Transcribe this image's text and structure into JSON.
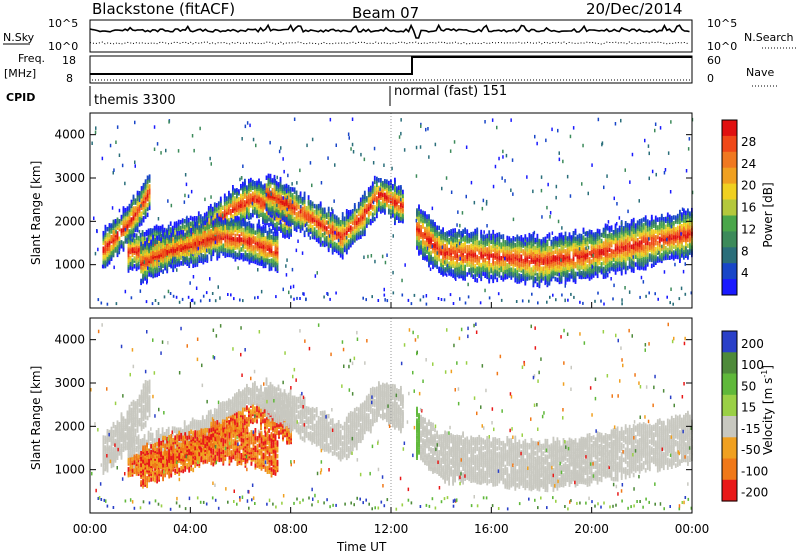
{
  "header": {
    "title": "Blackstone (fitACF)",
    "beam": "Beam 07",
    "date": "20/Dec/2014"
  },
  "panels": {
    "nsky": {
      "label": "N.Sky",
      "left_ticks": [
        "10^5",
        "10^0"
      ],
      "right_ticks": [
        "10^5",
        "10^0"
      ],
      "right_label": "N.Search"
    },
    "freq": {
      "label_top": "Freq.",
      "label_bottom": "[MHz]",
      "left_ticks": [
        "18",
        "8"
      ],
      "right_ticks": [
        "60",
        "0"
      ],
      "right_label": "Nave"
    },
    "cpid": {
      "label": "CPID",
      "segments": [
        {
          "name": "themis 3300",
          "start": "00:00"
        },
        {
          "name": "normal (fast) 151",
          "start": "12:00"
        }
      ]
    }
  },
  "chart_data": [
    {
      "type": "heatmap",
      "title": "Power",
      "ylabel": "Slant Range [km]",
      "xlabel": "Time UT",
      "x_ticks": [
        "00:00",
        "04:00",
        "08:00",
        "12:00",
        "16:00",
        "20:00",
        "00:00"
      ],
      "y_ticks": [
        1000,
        2000,
        3000,
        4000
      ],
      "ylim": [
        0,
        4500
      ],
      "colorbar": {
        "label": "Power [dB]",
        "ticks": [
          4,
          8,
          12,
          16,
          20,
          24,
          28
        ],
        "colors": [
          "#1a1aff",
          "#1846c8",
          "#2a6e7a",
          "#3c8a5a",
          "#4aa64a",
          "#b4c83c",
          "#f0d020",
          "#f0a020",
          "#f07820",
          "#f04818",
          "#e01010"
        ]
      },
      "bands": [
        {
          "time": [
            0.5,
            1,
            1.5,
            2,
            2.4
          ],
          "range": [
            1400,
            1700,
            2000,
            2400,
            2800
          ]
        },
        {
          "time": [
            1.5,
            3,
            4.5,
            5.5,
            6.5,
            8
          ],
          "range": [
            1350,
            1500,
            1800,
            2300,
            2600,
            2100
          ]
        },
        {
          "time": [
            7,
            8,
            9,
            10,
            10.8,
            11.5,
            12.5
          ],
          "range": [
            2700,
            2400,
            2050,
            1700,
            2150,
            2700,
            2400
          ]
        },
        {
          "time": [
            13,
            14,
            16,
            18,
            20,
            22,
            24
          ],
          "range": [
            1900,
            1350,
            1250,
            1150,
            1300,
            1550,
            1800
          ]
        },
        {
          "time": [
            2,
            3,
            4,
            5,
            6,
            7.5
          ],
          "range": [
            1100,
            1350,
            1500,
            1700,
            1650,
            1350
          ]
        }
      ]
    },
    {
      "type": "heatmap",
      "title": "Velocity",
      "ylabel": "Slant Range [km]",
      "xlabel": "Time UT",
      "x_ticks": [
        "00:00",
        "04:00",
        "08:00",
        "12:00",
        "16:00",
        "20:00",
        "00:00"
      ],
      "y_ticks": [
        1000,
        2000,
        3000,
        4000
      ],
      "ylim": [
        0,
        4500
      ],
      "colorbar": {
        "label_main": "Velocity",
        "label_unit": "[m s",
        "label_exp": "-1",
        "label_close": "]",
        "ticks": [
          "200",
          "100",
          "50",
          "15",
          "-15",
          "-50",
          "-100",
          "-200"
        ],
        "colors": [
          "#2a40c8",
          "#4e8a3a",
          "#5fb83a",
          "#9ad046",
          "#c8c8c0",
          "#f0a020",
          "#f07818",
          "#e81818"
        ]
      }
    }
  ]
}
